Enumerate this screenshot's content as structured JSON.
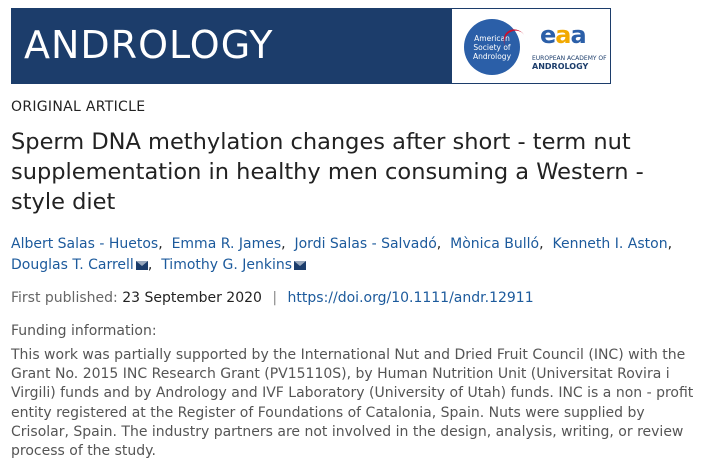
{
  "journal": {
    "name": "ANDROLOGY",
    "asa_logo_lines": [
      "American",
      "Society of",
      "Andrology"
    ],
    "eaa_mark": [
      "e",
      "a",
      "a"
    ],
    "eaa_line1": "EUROPEAN ACADEMY OF",
    "eaa_line2": "ANDROLOGY"
  },
  "article_type": "ORIGINAL ARTICLE",
  "title": "Sperm DNA methylation changes after short ‐ term nut supplementation in healthy men consuming a Western ‐ style diet",
  "authors": [
    {
      "name": "Albert Salas ‐ Huetos",
      "email": false
    },
    {
      "name": "Emma R. James",
      "email": false
    },
    {
      "name": "Jordi Salas ‐ Salvadó",
      "email": false
    },
    {
      "name": "Mònica Bulló",
      "email": false
    },
    {
      "name": "Kenneth I. Aston",
      "email": false
    },
    {
      "name": "Douglas T. Carrell",
      "email": true
    },
    {
      "name": "Timothy G. Jenkins",
      "email": true
    }
  ],
  "published": {
    "label": "First published:",
    "date": "23 September 2020",
    "separator": "|",
    "doi": "https://doi.org/10.1111/andr.12911"
  },
  "funding": {
    "label": "Funding information:",
    "text": "This work was partially supported by the International Nut and Dried Fruit Council (INC) with the Grant No. 2015 INC Research Grant (PV15110S), by Human Nutrition Unit (Universitat Rovira i Virgili) funds and by Andrology and IVF Laboratory (University of Utah) funds. INC is a non ‐ profit entity registered at the Register of Foundations of Catalonia, Spain. Nuts were supplied by Crisolar, Spain. The industry partners are not involved in the design, analysis, writing, or review process of the study."
  },
  "colors": {
    "banner": "#1c3d6b",
    "link": "#1c5a9c"
  }
}
